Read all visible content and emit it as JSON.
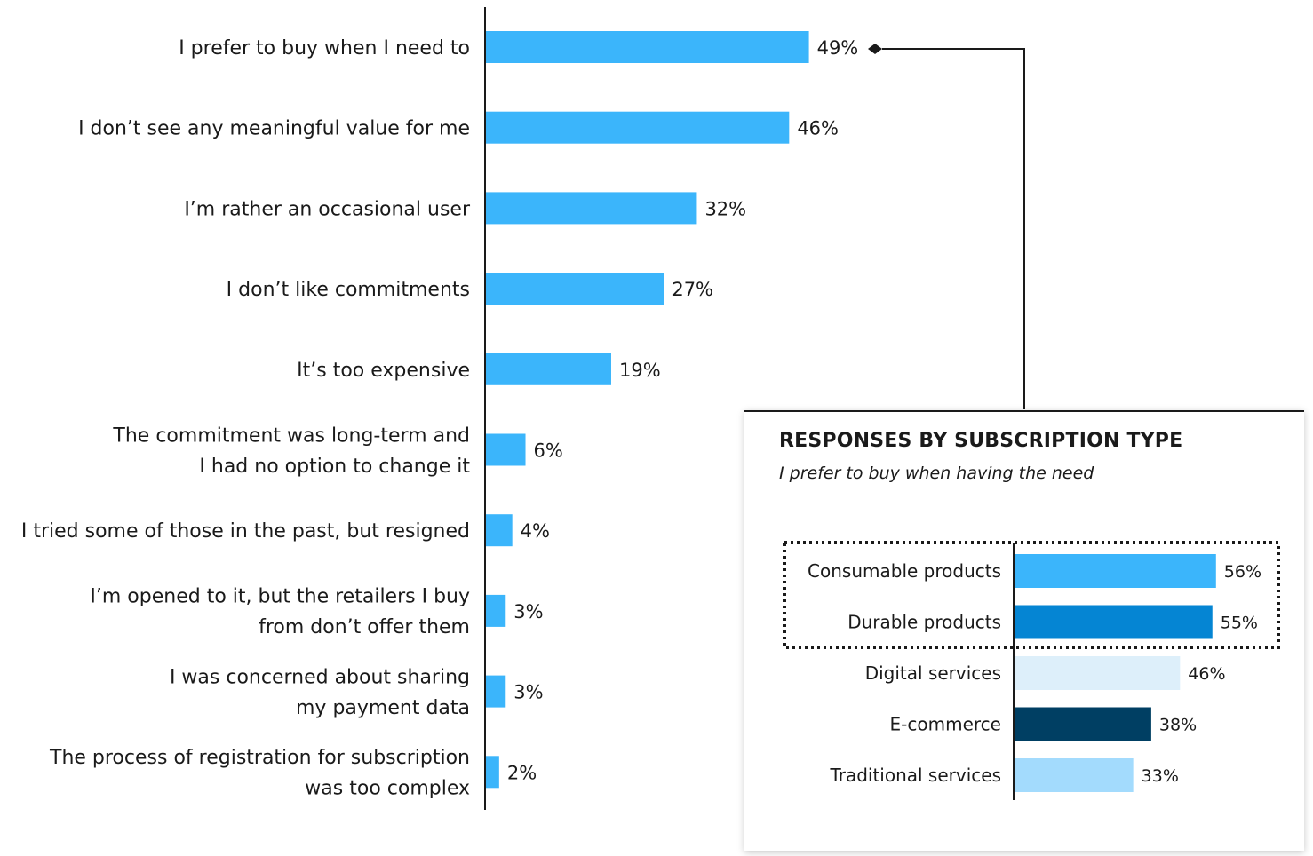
{
  "chart_data": [
    {
      "type": "bar",
      "orientation": "horizontal",
      "categories": [
        [
          "I prefer to buy when I need to"
        ],
        [
          "I don’t see any meaningful value for me"
        ],
        [
          "I’m rather an occasional user"
        ],
        [
          "I don’t like commitments"
        ],
        [
          "It’s too expensive"
        ],
        [
          "The commitment was long-term and",
          "I had no option to change it"
        ],
        [
          "I tried some of those in the past, but resigned"
        ],
        [
          "I’m opened to it, but the retailers I buy",
          "from don’t offer them"
        ],
        [
          "I was concerned about sharing",
          "my payment data"
        ],
        [
          "The process of registration for subscription",
          "was too complex"
        ]
      ],
      "values": [
        49,
        46,
        32,
        27,
        19,
        6,
        4,
        3,
        3,
        2
      ],
      "value_labels": [
        "49%",
        "46%",
        "32%",
        "27%",
        "19%",
        "6%",
        "4%",
        "3%",
        "3%",
        "2%"
      ],
      "bar_color": "#3bb5fb",
      "xlim": [
        0,
        100
      ]
    },
    {
      "type": "bar",
      "orientation": "horizontal",
      "title": "RESPONSES BY SUBSCRIPTION TYPE",
      "subtitle": "I prefer to buy when having the need",
      "categories": [
        "Consumable products",
        "Durable products",
        "Digital services",
        "E-commerce",
        "Traditional services"
      ],
      "values": [
        56,
        55,
        46,
        38,
        33
      ],
      "value_labels": [
        "56%",
        "55%",
        "46%",
        "38%",
        "33%"
      ],
      "colors": [
        "#3bb5fb",
        "#0585d3",
        "#ddeffa",
        "#003f63",
        "#a3dbfd"
      ],
      "highlighted": [
        "Consumable products",
        "Durable products"
      ],
      "xlim": [
        0,
        100
      ]
    }
  ]
}
